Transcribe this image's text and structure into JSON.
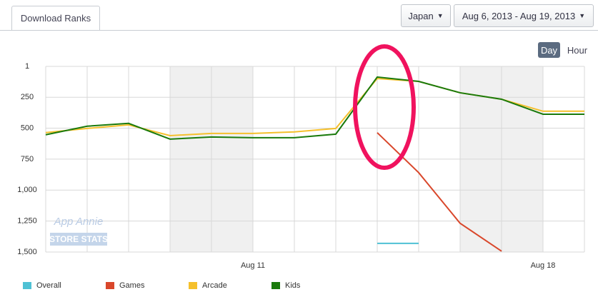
{
  "tab": "Download Ranks",
  "country": "Japan",
  "date_range": "Aug 6, 2013 - Aug 19, 2013",
  "granularity": [
    "Day",
    "Hour"
  ],
  "watermark": [
    "App Annie",
    "STORE STATS"
  ],
  "chart_data": {
    "type": "line",
    "categories": [
      null,
      null,
      null,
      null,
      null,
      "Aug 11",
      null,
      null,
      null,
      null,
      null,
      null,
      "Aug 18",
      null
    ],
    "ylim": [
      1,
      1500
    ],
    "y_inverted": true,
    "yticks": [
      1,
      250,
      500,
      750,
      {
        "value": 1000,
        "label": "1,000"
      },
      {
        "value": 1250,
        "label": "1,250"
      },
      {
        "value": 1500,
        "label": "1,500"
      }
    ],
    "grid": true,
    "series": [
      {
        "name": "Overall",
        "color": "#4fc1d4",
        "values": [
          null,
          null,
          null,
          null,
          null,
          null,
          null,
          null,
          1430,
          1430,
          null,
          null,
          null,
          null
        ]
      },
      {
        "name": "Games",
        "color": "#d9472b",
        "values": [
          null,
          null,
          null,
          null,
          null,
          null,
          null,
          null,
          536,
          859,
          1268,
          1493,
          null,
          null
        ]
      },
      {
        "name": "Arcade",
        "color": "#f5c02c",
        "values": [
          536,
          502,
          473,
          560,
          542,
          542,
          530,
          502,
          99,
          122,
          214,
          266,
          363,
          363
        ]
      },
      {
        "name": "Kids",
        "color": "#1a7a0c",
        "values": [
          553,
          484,
          461,
          588,
          571,
          577,
          577,
          548,
          87,
          122,
          214,
          266,
          387,
          387
        ]
      }
    ]
  }
}
